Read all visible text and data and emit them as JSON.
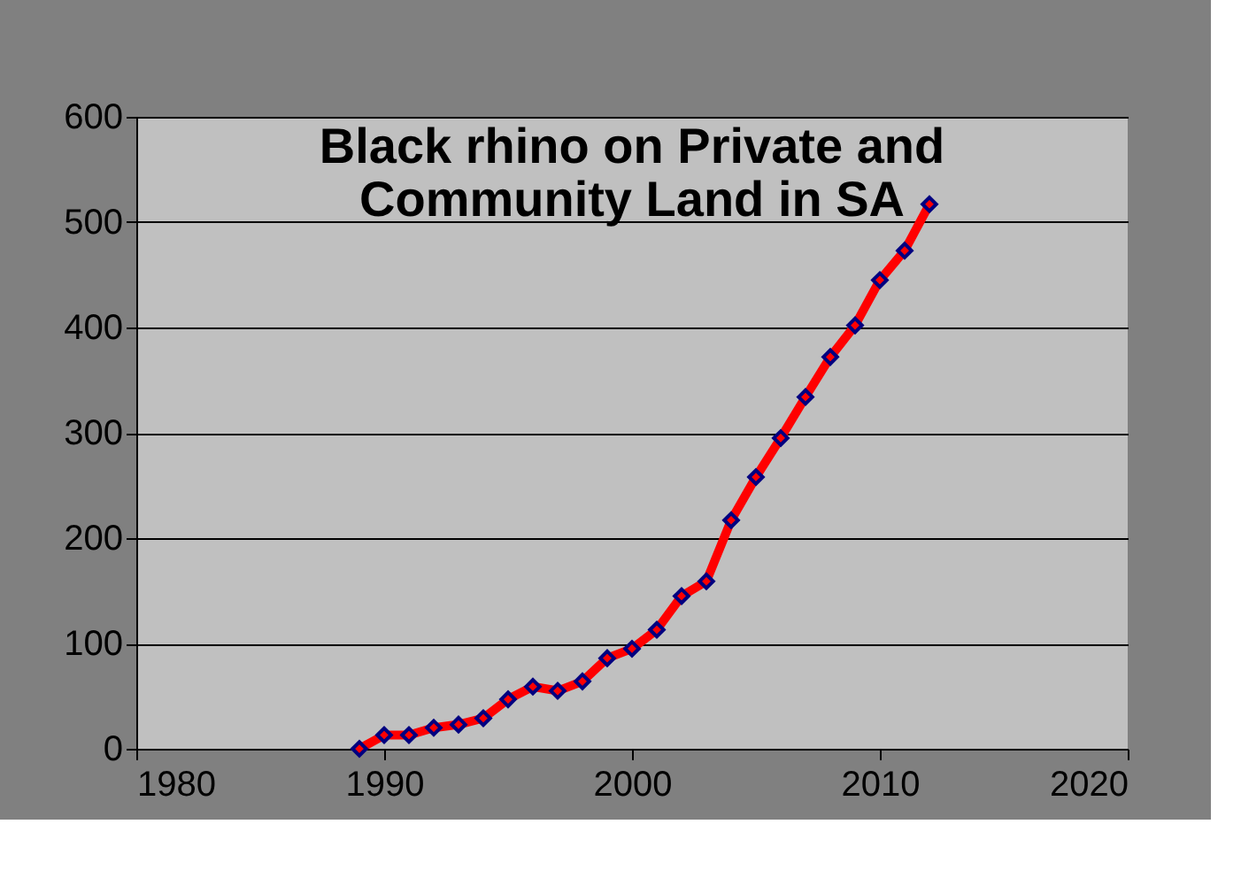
{
  "chart_data": {
    "type": "line",
    "title": [
      "Black rhino on Private and",
      "Community Land in SA"
    ],
    "x": [
      1989,
      1990,
      1991,
      1992,
      1993,
      1994,
      1995,
      1996,
      1997,
      1998,
      1999,
      2000,
      2001,
      2002,
      2003,
      2004,
      2005,
      2006,
      2007,
      2008,
      2009,
      2010,
      2011,
      2012
    ],
    "series": [
      {
        "color": "#ff0000",
        "values": [
          0,
          13,
          13,
          20,
          23,
          29,
          47,
          59,
          55,
          64,
          86,
          95,
          113,
          145,
          159,
          217,
          258,
          295,
          334,
          372,
          402,
          445,
          473,
          517
        ]
      }
    ],
    "xlim": [
      1980,
      2020
    ],
    "xticks": [
      1980,
      1990,
      2000,
      2010,
      2020
    ],
    "ylim": [
      0,
      600
    ],
    "yticks": [
      0,
      100,
      200,
      300,
      400,
      500,
      600
    ],
    "grid": "y",
    "marker": "diamond",
    "line_style": "solid"
  }
}
